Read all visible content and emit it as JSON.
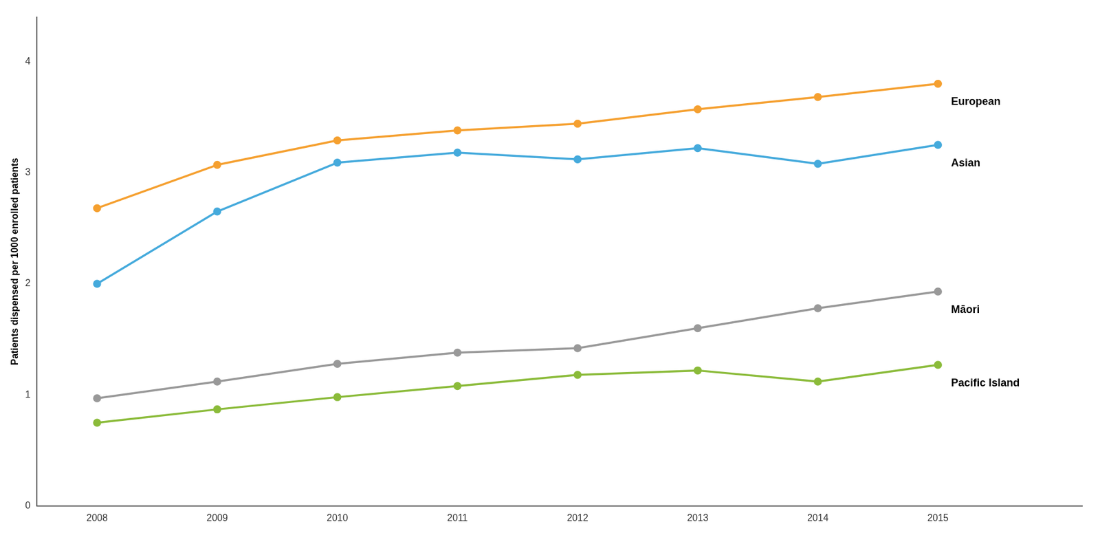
{
  "chart_data": {
    "type": "line",
    "ylabel": "Patients dispensed per 1000 enrolled patients",
    "x": [
      2008,
      2009,
      2010,
      2011,
      2012,
      2013,
      2014,
      2015
    ],
    "series": [
      {
        "name": "European",
        "color": "#F5A030",
        "values": [
          2.68,
          3.07,
          3.29,
          3.38,
          3.44,
          3.57,
          3.68,
          3.8
        ]
      },
      {
        "name": "Asian",
        "color": "#45AADC",
        "values": [
          2.0,
          2.65,
          3.09,
          3.18,
          3.12,
          3.22,
          3.08,
          3.25
        ]
      },
      {
        "name": "Māori",
        "color": "#999999",
        "values": [
          0.97,
          1.12,
          1.28,
          1.38,
          1.42,
          1.6,
          1.78,
          1.93
        ]
      },
      {
        "name": "Pacific Island",
        "color": "#8BBB3A",
        "values": [
          0.75,
          0.87,
          0.98,
          1.08,
          1.18,
          1.22,
          1.12,
          1.27
        ]
      }
    ],
    "xlim": [
      2007.5,
      2016.2
    ],
    "xticks": [
      2008,
      2009,
      2010,
      2011,
      2012,
      2013,
      2014,
      2015
    ],
    "ylim": [
      0,
      4.4
    ],
    "yticks": [
      0,
      1,
      2,
      3,
      4
    ],
    "grid": false,
    "marker": "circle"
  }
}
